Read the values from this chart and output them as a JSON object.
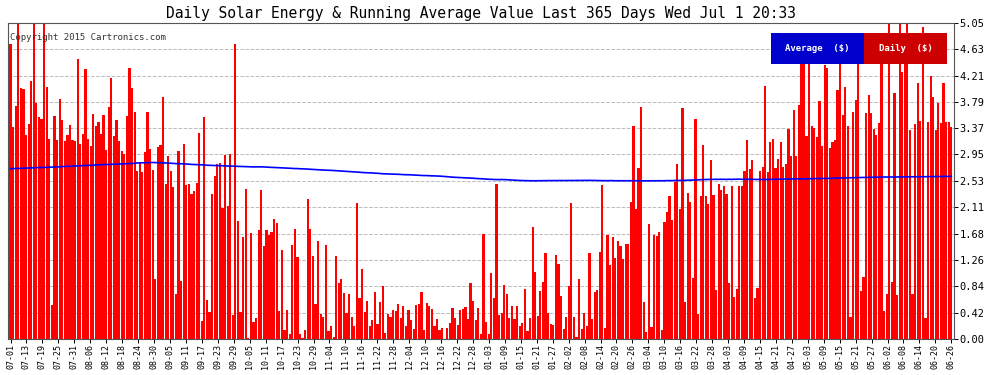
{
  "title": "Daily Solar Energy & Running Average Value Last 365 Days Wed Jul 1 20:33",
  "copyright": "Copyright 2015 Cartronics.com",
  "legend_avg": "Average  ($)",
  "legend_daily": "Daily  ($)",
  "ylim": [
    0.0,
    5.05
  ],
  "yticks": [
    0.0,
    0.42,
    0.84,
    1.26,
    1.68,
    2.11,
    2.53,
    2.95,
    3.37,
    3.79,
    4.21,
    4.63,
    5.05
  ],
  "bar_color": "#ff0000",
  "avg_color": "#0000ff",
  "bg_color": "#ffffff",
  "grid_color": "#bbbbbb",
  "title_color": "#000000",
  "fig_bg": "#ffffff",
  "bar_width": 0.85,
  "xtick_labels": [
    "07-01",
    "07-13",
    "07-19",
    "07-25",
    "07-31",
    "08-06",
    "08-12",
    "08-18",
    "08-24",
    "08-30",
    "09-05",
    "09-11",
    "09-17",
    "09-23",
    "09-29",
    "10-05",
    "10-11",
    "10-17",
    "10-23",
    "10-29",
    "11-04",
    "11-10",
    "11-16",
    "11-22",
    "11-28",
    "12-04",
    "12-10",
    "12-16",
    "12-22",
    "12-28",
    "01-03",
    "01-09",
    "01-15",
    "01-21",
    "01-27",
    "02-02",
    "02-08",
    "02-14",
    "02-20",
    "02-26",
    "03-04",
    "03-10",
    "03-16",
    "03-22",
    "03-28",
    "04-03",
    "04-09",
    "04-15",
    "04-21",
    "04-27",
    "05-03",
    "05-09",
    "05-15",
    "05-21",
    "05-27",
    "06-02",
    "06-08",
    "06-14",
    "06-20",
    "06-26"
  ]
}
